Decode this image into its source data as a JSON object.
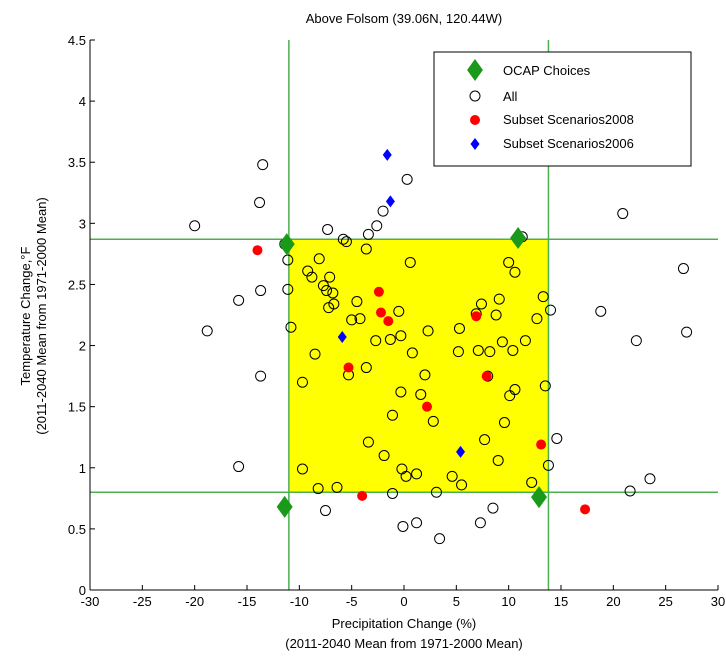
{
  "chart_data": {
    "type": "scatter",
    "title": "Above Folsom (39.06N, 120.44W)",
    "xlabel": [
      "Precipitation Change (%)",
      "(2011-2040 Mean from 1971-2000 Mean)"
    ],
    "ylabel": [
      "Temperature Change,°F",
      "(2011-2040 Mean from 1971-2000 Mean)"
    ],
    "xlim": [
      -30,
      30
    ],
    "ylim": [
      0,
      4.5
    ],
    "xticks": [
      "-30",
      "-25",
      "-20",
      "-15",
      "-10",
      "-5",
      "0",
      "5",
      "10",
      "15",
      "20",
      "25",
      "30"
    ],
    "yticks": [
      "0",
      "0.5",
      "1",
      "1.5",
      "2",
      "2.5",
      "3",
      "3.5",
      "4",
      "4.5"
    ],
    "grid": false,
    "legend_position": "top-right",
    "shaded_region": {
      "x": [
        -11,
        13.8
      ],
      "y": [
        0.8,
        2.87
      ],
      "color": "#ffff00"
    },
    "reference_lines": {
      "x": [
        -11,
        13.8
      ],
      "y": [
        0.8,
        2.87
      ],
      "color": "#4caf50"
    },
    "series": [
      {
        "name": "OCAP Choices",
        "marker": "diamond",
        "color": "#1a9a1a",
        "points": [
          [
            -11.2,
            2.83
          ],
          [
            10.9,
            2.88
          ],
          [
            -11.4,
            0.68
          ],
          [
            12.9,
            0.76
          ]
        ]
      },
      {
        "name": "All",
        "marker": "circle-open",
        "color": "#000000",
        "points": [
          [
            -20,
            2.98
          ],
          [
            -18.8,
            2.12
          ],
          [
            -15.8,
            2.37
          ],
          [
            -15.8,
            1.01
          ],
          [
            -13.8,
            3.17
          ],
          [
            -13.5,
            3.48
          ],
          [
            -13.7,
            2.45
          ],
          [
            -13.7,
            1.75
          ],
          [
            -11.4,
            2.83
          ],
          [
            -11.1,
            2.7
          ],
          [
            -11.1,
            2.46
          ],
          [
            -10.8,
            2.15
          ],
          [
            -11.4,
            0.68
          ],
          [
            -9.7,
            1.7
          ],
          [
            -9.7,
            0.99
          ],
          [
            -9.2,
            2.61
          ],
          [
            -8.8,
            2.56
          ],
          [
            -8.5,
            1.93
          ],
          [
            -8.1,
            2.71
          ],
          [
            -8.2,
            0.83
          ],
          [
            -7.7,
            2.49
          ],
          [
            -7.3,
            2.95
          ],
          [
            -7.4,
            2.45
          ],
          [
            -7.1,
            2.56
          ],
          [
            -6.8,
            2.43
          ],
          [
            -7.2,
            2.31
          ],
          [
            -7.5,
            0.65
          ],
          [
            -6.7,
            2.34
          ],
          [
            -6.4,
            0.84
          ],
          [
            -5.8,
            2.87
          ],
          [
            -5.5,
            2.85
          ],
          [
            -5.3,
            1.76
          ],
          [
            -5.0,
            2.21
          ],
          [
            -4.5,
            2.36
          ],
          [
            -4.2,
            2.22
          ],
          [
            -3.6,
            2.79
          ],
          [
            -3.4,
            2.91
          ],
          [
            -3.6,
            1.82
          ],
          [
            -3.4,
            1.21
          ],
          [
            -2.6,
            2.98
          ],
          [
            -2.0,
            3.1
          ],
          [
            -2.7,
            2.04
          ],
          [
            -1.9,
            1.1
          ],
          [
            -1.3,
            2.05
          ],
          [
            -1.1,
            1.43
          ],
          [
            -1.1,
            0.79
          ],
          [
            -0.5,
            2.28
          ],
          [
            -0.3,
            2.08
          ],
          [
            -0.3,
            1.62
          ],
          [
            -0.2,
            0.99
          ],
          [
            -0.1,
            0.52
          ],
          [
            0.3,
            3.36
          ],
          [
            0.2,
            0.93
          ],
          [
            0.6,
            2.68
          ],
          [
            0.8,
            1.94
          ],
          [
            1.2,
            0.55
          ],
          [
            1.2,
            0.95
          ],
          [
            1.6,
            1.6
          ],
          [
            2.0,
            1.76
          ],
          [
            2.3,
            2.12
          ],
          [
            2.8,
            1.38
          ],
          [
            3.1,
            0.8
          ],
          [
            3.4,
            0.42
          ],
          [
            4.6,
            0.93
          ],
          [
            5.2,
            1.95
          ],
          [
            5.3,
            2.14
          ],
          [
            5.5,
            0.86
          ],
          [
            6.9,
            2.26
          ],
          [
            7.1,
            1.96
          ],
          [
            7.4,
            2.34
          ],
          [
            7.3,
            0.55
          ],
          [
            7.7,
            1.23
          ],
          [
            8.0,
            1.75
          ],
          [
            8.2,
            1.95
          ],
          [
            8.5,
            0.67
          ],
          [
            8.8,
            2.25
          ],
          [
            9.0,
            1.06
          ],
          [
            9.1,
            2.38
          ],
          [
            9.4,
            2.03
          ],
          [
            9.6,
            1.37
          ],
          [
            10.0,
            2.68
          ],
          [
            10.1,
            1.59
          ],
          [
            10.4,
            1.96
          ],
          [
            10.6,
            1.64
          ],
          [
            10.6,
            2.6
          ],
          [
            11.3,
            2.89
          ],
          [
            11.6,
            2.04
          ],
          [
            12.2,
            0.88
          ],
          [
            12.7,
            2.22
          ],
          [
            12.9,
            0.76
          ],
          [
            13.3,
            2.4
          ],
          [
            13.5,
            1.67
          ],
          [
            13.8,
            1.02
          ],
          [
            14.0,
            2.29
          ],
          [
            14.6,
            1.24
          ],
          [
            18.8,
            2.28
          ],
          [
            20.9,
            3.08
          ],
          [
            21.6,
            0.81
          ],
          [
            22.2,
            2.04
          ],
          [
            23.5,
            0.91
          ],
          [
            26.7,
            2.63
          ],
          [
            27.0,
            2.11
          ]
        ]
      },
      {
        "name": "Subset Scenarios2008",
        "marker": "circle-filled",
        "color": "#ff0000",
        "points": [
          [
            -14,
            2.78
          ],
          [
            -5.3,
            1.82
          ],
          [
            -4.0,
            0.77
          ],
          [
            -2.4,
            2.44
          ],
          [
            -2.2,
            2.27
          ],
          [
            -1.5,
            2.2
          ],
          [
            2.2,
            1.5
          ],
          [
            6.9,
            2.24
          ],
          [
            7.9,
            1.75
          ],
          [
            13.1,
            1.19
          ],
          [
            17.3,
            0.66
          ]
        ]
      },
      {
        "name": "Subset Scenarios2006",
        "marker": "diamond-filled",
        "color": "#0000ff",
        "points": [
          [
            -1.6,
            3.56
          ],
          [
            -1.3,
            3.18
          ],
          [
            -5.9,
            2.07
          ],
          [
            5.4,
            1.13
          ]
        ]
      }
    ]
  }
}
